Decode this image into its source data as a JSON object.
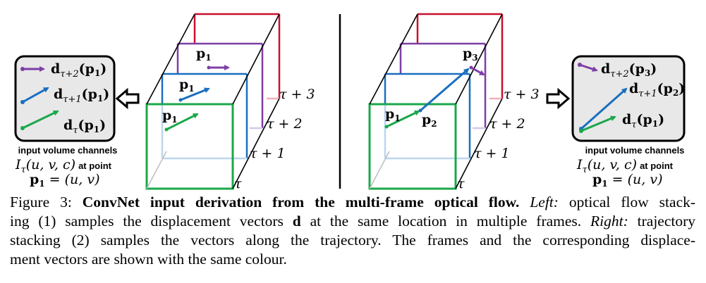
{
  "colors": {
    "frame_tau": "#1aa84a",
    "frame_tau1": "#1a6fbf",
    "frame_tau2": "#7d3fa6",
    "frame_tau3": "#c8102e",
    "panel_bg": "#e8e8e8"
  },
  "left_diagram": {
    "box_labels": {
      "tau": "τ",
      "tau1": "τ + 1",
      "tau2": "τ + 2",
      "tau3": "τ + 3"
    },
    "point_labels": [
      "p",
      "p",
      "p"
    ],
    "point_subscripts": [
      "1",
      "1",
      "1"
    ]
  },
  "right_diagram": {
    "box_labels": {
      "tau": "τ",
      "tau1": "τ + 1",
      "tau2": "τ + 2",
      "tau3": "τ + 3"
    },
    "point_labels": [
      "p",
      "p",
      "p"
    ],
    "point_subscripts": [
      "1",
      "2",
      "3"
    ]
  },
  "left_panel": {
    "vectors": [
      {
        "d": "d",
        "sub": "τ+2",
        "arg": "(p",
        "arg_sub": "1",
        "close": ")"
      },
      {
        "d": "d",
        "sub": "τ+1",
        "arg": "(p",
        "arg_sub": "1",
        "close": ")"
      },
      {
        "d": "d",
        "sub": "τ",
        "arg": "(p",
        "arg_sub": "1",
        "close": ")"
      }
    ],
    "caption_line1": "input volume channels",
    "caption_line2_math": "I",
    "caption_line2_sub": "τ",
    "caption_line2_args": "(u, v, c)",
    "caption_line2_text": "at point",
    "caption_line3": "= (u, v)",
    "caption_line3_p": "p",
    "caption_line3_sub": "1"
  },
  "right_panel": {
    "vectors": [
      {
        "d": "d",
        "sub": "τ+2",
        "arg": "(p",
        "arg_sub": "3",
        "close": ")"
      },
      {
        "d": "d",
        "sub": "τ+1",
        "arg": "(p",
        "arg_sub": "2",
        "close": ")"
      },
      {
        "d": "d",
        "sub": "τ",
        "arg": "(p",
        "arg_sub": "1",
        "close": ")"
      }
    ],
    "caption_line1": "input volume channels",
    "caption_line2_math": "I",
    "caption_line2_sub": "τ",
    "caption_line2_args": "(u, v, c)",
    "caption_line2_text": "at point",
    "caption_line3": "= (u, v)",
    "caption_line3_p": "p",
    "caption_line3_sub": "1"
  },
  "caption": {
    "label": "Figure 3:",
    "title": "ConvNet input derivation from the multi-frame optical flow.",
    "left_word": "Left:",
    "text1": "optical flow stack-",
    "line2_a": "ing (1) samples the displacement vectors",
    "line2_d": "d",
    "line2_b": "at the same location in multiple frames.",
    "right_word": "Right:",
    "line2_c": "trajectory",
    "line3": "stacking (2) samples the vectors along the trajectory.  The frames and the corresponding displace-",
    "line4": "ment vectors are shown with the same colour."
  }
}
